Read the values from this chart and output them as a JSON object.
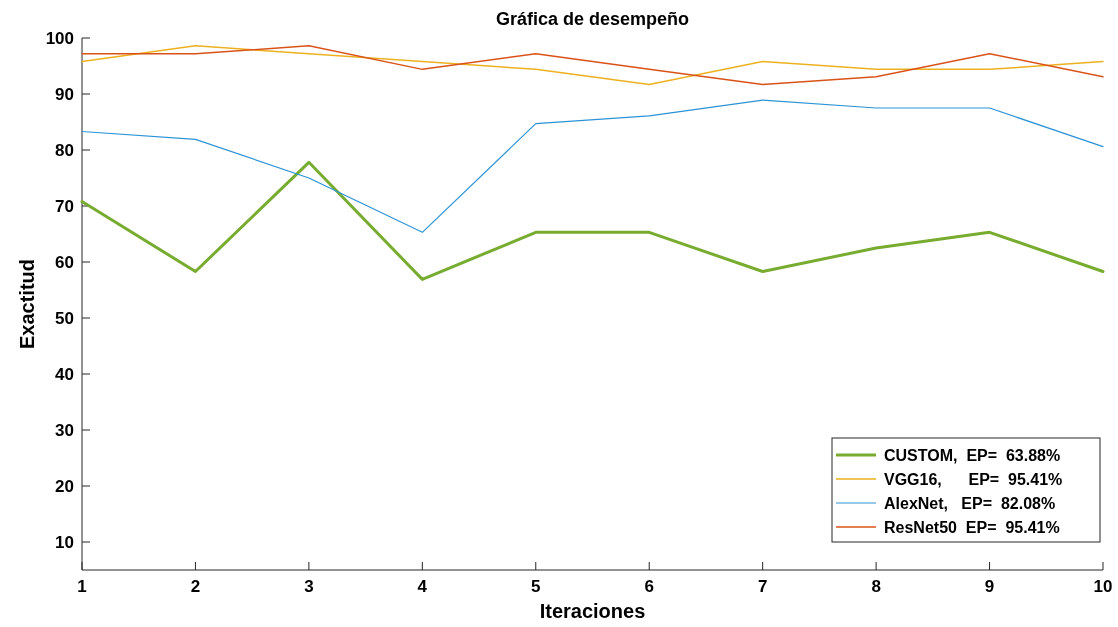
{
  "chart_data": {
    "type": "line",
    "title": "Gráfica de desempeño",
    "xlabel": "Iteraciones",
    "ylabel": "Exactitud",
    "x": [
      1,
      2,
      3,
      4,
      5,
      6,
      7,
      8,
      9,
      10
    ],
    "xlim": [
      1,
      10
    ],
    "xticks": [
      1,
      2,
      3,
      4,
      5,
      6,
      7,
      8,
      9,
      10
    ],
    "ylim": [
      5,
      100
    ],
    "yticks": [
      10,
      20,
      30,
      40,
      50,
      60,
      70,
      80,
      90,
      100
    ],
    "grid": false,
    "legend": "bottom right",
    "marker": "none",
    "line_style": "solid",
    "series": [
      {
        "name": "CUSTOM,  EP=  63.88%",
        "color": "#77ac30",
        "values": [
          70.8,
          58.3,
          77.8,
          56.9,
          65.3,
          65.3,
          58.3,
          62.5,
          65.3,
          58.3
        ]
      },
      {
        "name": "VGG16,      EP=  95.41%",
        "color": "#edb120",
        "values": [
          95.8,
          98.6,
          97.2,
          95.8,
          94.4,
          91.7,
          95.8,
          94.4,
          94.4,
          95.8
        ]
      },
      {
        "name": "AlexNet,   EP=  82.08%",
        "color": "#2c93d5",
        "values": [
          83.3,
          81.9,
          75.0,
          65.3,
          84.7,
          86.1,
          88.9,
          87.5,
          87.5,
          80.6
        ]
      },
      {
        "name": "ResNet50  EP=  95.41%",
        "color": "#d95319",
        "values": [
          97.2,
          97.2,
          98.6,
          94.4,
          97.2,
          94.4,
          91.7,
          93.1,
          97.2,
          93.1
        ]
      }
    ]
  }
}
